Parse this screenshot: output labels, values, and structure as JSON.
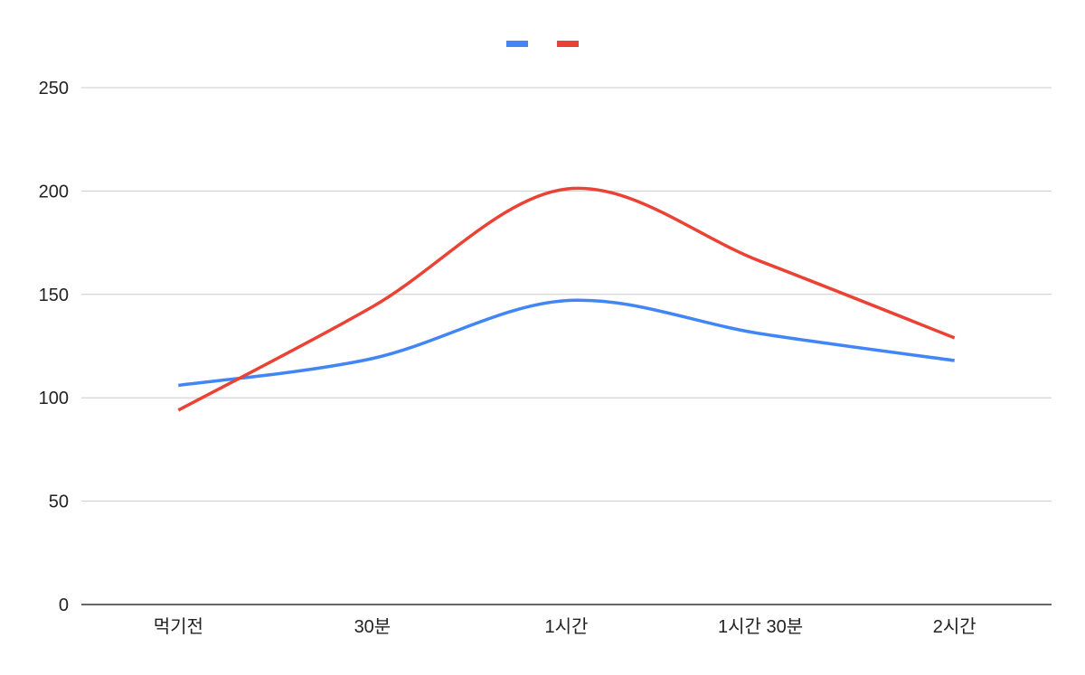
{
  "chart_data": {
    "type": "line",
    "categories": [
      "먹기전",
      "30분",
      "1시간",
      "1시간 30분",
      "2시간"
    ],
    "series": [
      {
        "color": "#4285f4",
        "values": [
          106,
          119,
          147,
          131,
          118
        ]
      },
      {
        "color": "#ea4335",
        "values": [
          94,
          144,
          201,
          166,
          129
        ]
      }
    ],
    "ylim": [
      0,
      250
    ],
    "yticks": [
      0,
      50,
      100,
      150,
      200,
      250
    ],
    "grid": true,
    "smooth": true,
    "legend_position": "top-center"
  }
}
